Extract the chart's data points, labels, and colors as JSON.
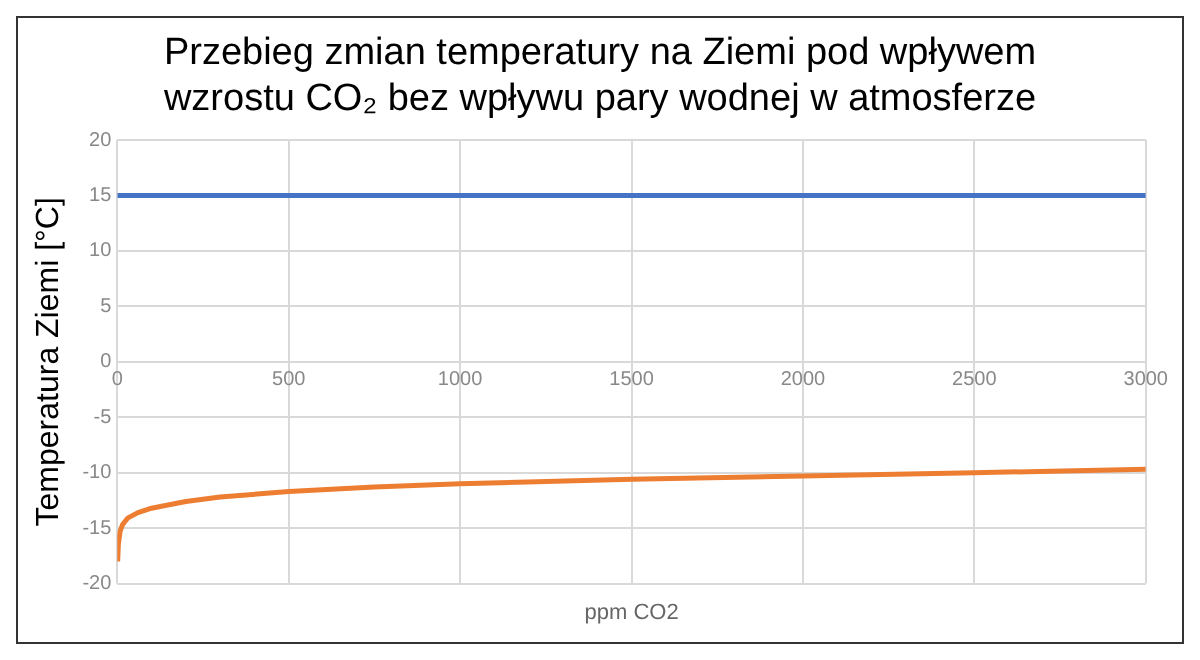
{
  "chart_data": {
    "type": "line",
    "title": "Przebieg zmian temperatury na Ziemi pod wpływem wzrostu CO₂ bez wpływu pary wodnej w atmosferze",
    "xlabel": "ppm CO2",
    "ylabel": "Temperatura Ziemi [°C]",
    "series": [
      {
        "color": "#4472c4",
        "x": [
          0,
          3000
        ],
        "values": [
          15,
          15
        ]
      },
      {
        "color": "#ed7d31",
        "x": [
          1,
          3,
          8,
          15,
          30,
          60,
          100,
          200,
          300,
          500,
          750,
          1000,
          1500,
          2000,
          2500,
          3000
        ],
        "values": [
          -18,
          -16.5,
          -15.3,
          -14.7,
          -14.1,
          -13.6,
          -13.2,
          -12.6,
          -12.2,
          -11.7,
          -11.3,
          -11,
          -10.6,
          -10.3,
          -10,
          -9.7
        ]
      }
    ],
    "xlim": [
      0,
      3000
    ],
    "xticks": [
      0,
      500,
      1000,
      1500,
      2000,
      2500,
      3000
    ],
    "ylim": [
      -20,
      20
    ],
    "yticks": [
      -20,
      -15,
      -10,
      -5,
      0,
      5,
      10,
      15,
      20
    ],
    "grid": true,
    "legend": false,
    "marker": "none",
    "line_style": "solid"
  }
}
